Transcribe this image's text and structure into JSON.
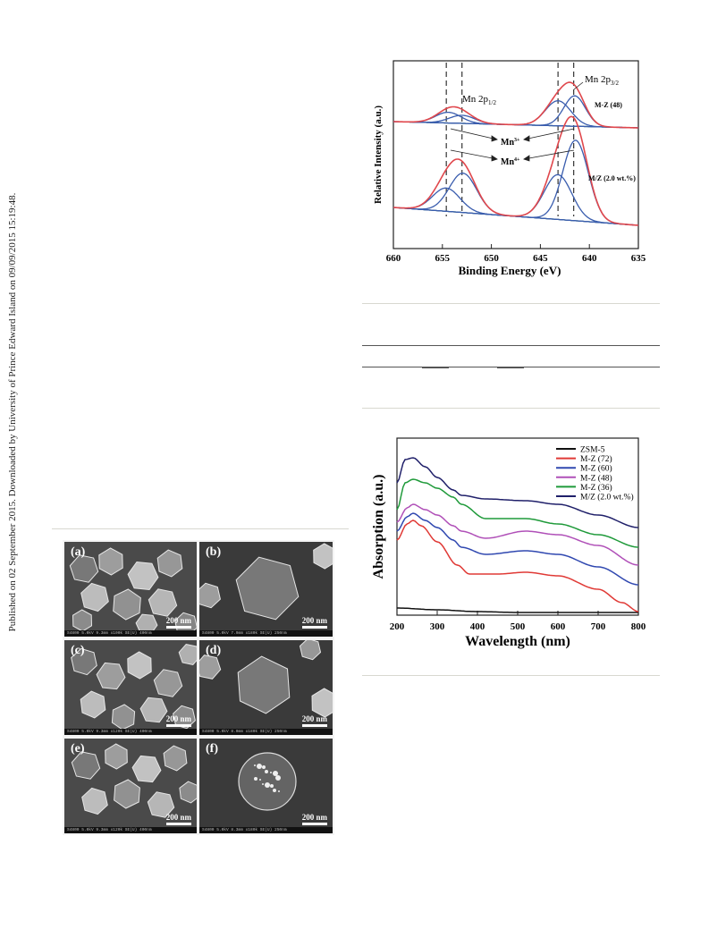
{
  "sidebar_text": "Published on 02 September 2015. Downloaded by University of Prince Edward Island on 09/09/2015 15:19:48.",
  "xps": {
    "type": "line",
    "xlabel": "Binding Energy (eV)",
    "ylabel": "Relative Intensity (a.u.)",
    "xlim": [
      660,
      635
    ],
    "x_ticks": [
      "660",
      "655",
      "650",
      "645",
      "640",
      "635"
    ],
    "peak_labels": {
      "p12_main": "Mn 2p",
      "p12_sub": "1/2",
      "p32_main": "Mn 2p",
      "p32_sub": "3/2"
    },
    "ion_labels": {
      "mn3_main": "Mn",
      "mn3_sup": "3+",
      "mn4_main": "Mn",
      "mn4_sup": "4+"
    },
    "series_labels": [
      "M-Z (48)",
      "M/Z (2.0 wt.%)"
    ],
    "dashed_lines_ev": [
      654.6,
      653.0,
      643.2,
      641.6
    ],
    "colors": {
      "envelope": "#e0474c",
      "component": "#3a5dae",
      "background": "#3a9a3a"
    }
  },
  "uv": {
    "type": "line",
    "xlabel": "Wavelength (nm)",
    "ylabel": "Absorption (a.u.)",
    "xlim": [
      200,
      800
    ],
    "x_ticks": [
      "200",
      "300",
      "400",
      "500",
      "600",
      "700",
      "800"
    ],
    "series": [
      {
        "name": "ZSM-5",
        "color": "#111111"
      },
      {
        "name": "M-Z (72)",
        "color": "#e03a36"
      },
      {
        "name": "M-Z (60)",
        "color": "#3048b0"
      },
      {
        "name": "M-Z (48)",
        "color": "#b050b8"
      },
      {
        "name": "M-Z (36)",
        "color": "#1f9a3a"
      },
      {
        "name": "M/Z (2.0 wt.%)",
        "color": "#20206a"
      }
    ]
  },
  "sem": {
    "panels": [
      {
        "label": "(a)",
        "scale": "200 nm",
        "meta": "S4800 5.0kV 9.3mm x100k SE(U)"
      },
      {
        "label": "(b)",
        "scale": "200 nm",
        "meta": "S4800 5.0kV 7.9mm x180k SE(U)"
      },
      {
        "label": "(c)",
        "scale": "200 nm",
        "meta": "S4800 5.0kV 9.3mm x120k SE(U)"
      },
      {
        "label": "(d)",
        "scale": "200 nm",
        "meta": "S4800 5.0kV 8.0mm x180k SE(U)"
      },
      {
        "label": "(e)",
        "scale": "200 nm",
        "meta": "S4800 5.0kV 9.3mm x120k SE(U)"
      },
      {
        "label": "(f)",
        "scale": "200 nm",
        "meta": "S4800 5.0kV 8.3mm x180k SE(U)"
      }
    ],
    "meta_right": [
      "400nm",
      "250nm",
      "400nm",
      "250nm",
      "400nm",
      "250nm"
    ]
  }
}
